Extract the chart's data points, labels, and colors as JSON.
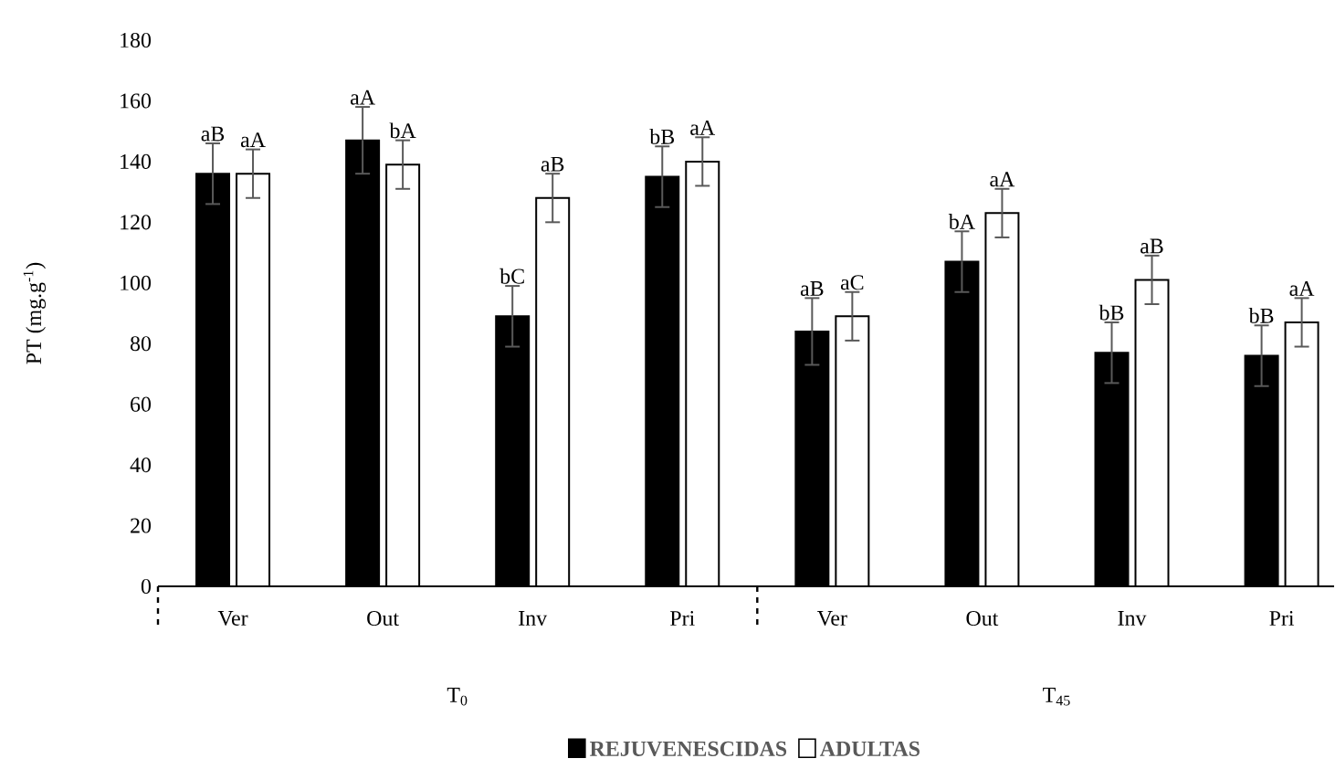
{
  "chart_data": {
    "type": "bar",
    "ylabel": "PT (mg.g$^{-1}$)",
    "categories": [
      "Ver",
      "Out",
      "Inv",
      "Pri",
      "Ver",
      "Out",
      "Inv",
      "Pri"
    ],
    "series": [
      {
        "name": "REJUVENESCIDAS",
        "color": "#000000",
        "values": [
          136,
          147,
          89,
          135,
          84,
          107,
          77,
          76
        ],
        "errors": [
          10,
          11,
          10,
          10,
          11,
          10,
          10,
          10
        ],
        "value_labels": [
          "aB",
          "aA",
          "bC",
          "bB",
          "aB",
          "bA",
          "bB",
          "bB"
        ]
      },
      {
        "name": "ADULTAS",
        "color": "#ffffff",
        "values": [
          136,
          139,
          128,
          140,
          89,
          123,
          101,
          87
        ],
        "errors": [
          8,
          8,
          8,
          8,
          8,
          8,
          8,
          8
        ],
        "value_labels": [
          "aA",
          "bA",
          "aB",
          "aA",
          "aC",
          "aA",
          "aB",
          "aA"
        ]
      }
    ],
    "annotations": [
      "T$_{0}$",
      "T$_{45}$"
    ],
    "ylim": [
      0,
      180
    ],
    "yticks": [
      0,
      20,
      40,
      60,
      80,
      100,
      120,
      140,
      160,
      180
    ],
    "grid": false,
    "legend": "bottom"
  }
}
